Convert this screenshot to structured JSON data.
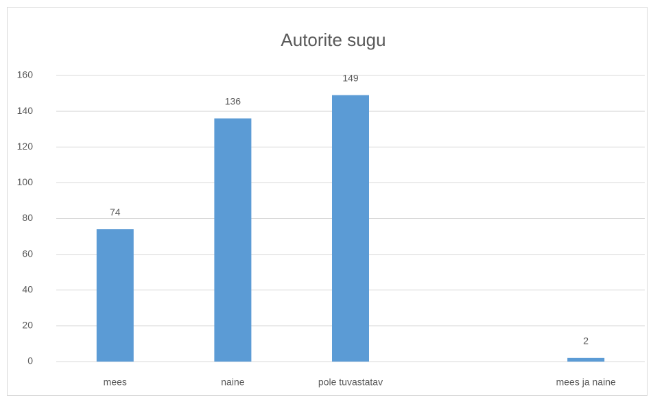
{
  "chart_data": {
    "type": "bar",
    "title": "Autorite sugu",
    "categories": [
      "mees",
      "naine",
      "pole tuvastatav",
      null,
      "mees ja naine"
    ],
    "values": [
      74,
      136,
      149,
      null,
      2
    ],
    "color": "#5b9bd5",
    "ylim": [
      0,
      160
    ],
    "yticks": [
      0,
      20,
      40,
      60,
      80,
      100,
      120,
      140,
      160
    ],
    "grid": true
  }
}
